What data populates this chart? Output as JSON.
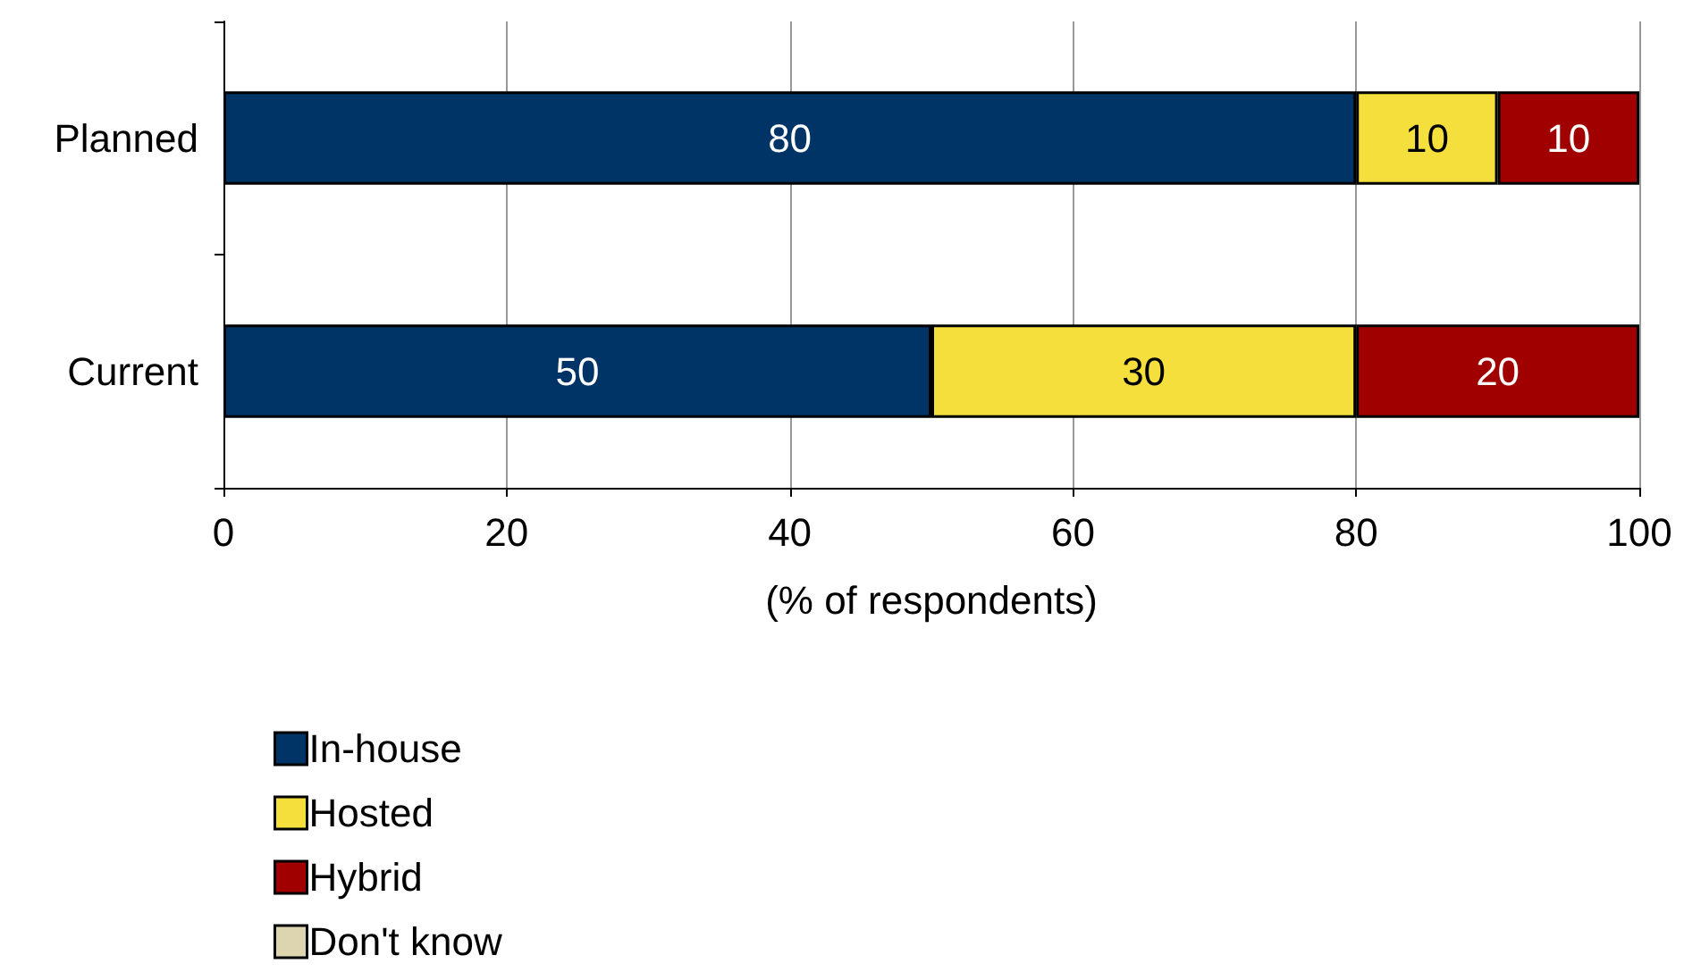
{
  "chart_data": {
    "type": "bar",
    "orientation": "horizontal",
    "stacked": true,
    "categories": [
      "Planned",
      "Current"
    ],
    "series": [
      {
        "name": "In-house",
        "color": "#003366",
        "values": [
          80,
          50
        ],
        "value_labels": [
          "80",
          "50"
        ]
      },
      {
        "name": "Hosted",
        "color": "#f5df3c",
        "values": [
          10,
          30
        ],
        "value_labels": [
          "10",
          "30"
        ]
      },
      {
        "name": "Hybrid",
        "color": "#a00000",
        "values": [
          10,
          20
        ],
        "value_labels": [
          "10",
          "20"
        ]
      },
      {
        "name": "Don't know",
        "color": "#ddd5b0",
        "values": [
          0,
          0
        ],
        "value_labels": [
          null,
          null
        ]
      }
    ],
    "xlim": [
      0,
      100
    ],
    "xticks": [
      0,
      20,
      40,
      60,
      80,
      100
    ],
    "xlabel": "(% of respondents)",
    "grid": "x",
    "legend": "bottom left"
  }
}
